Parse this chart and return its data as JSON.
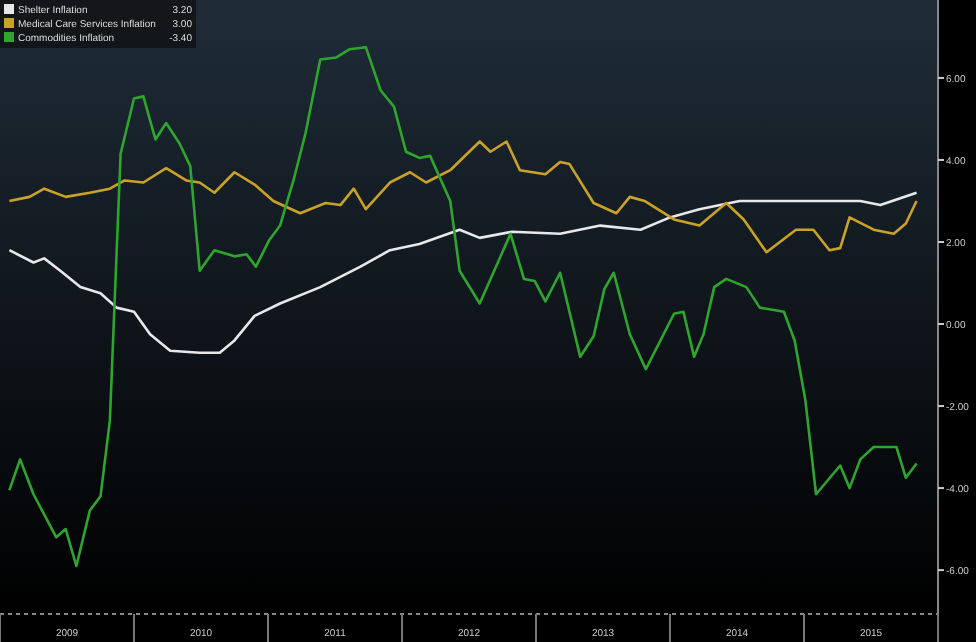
{
  "chart_data": {
    "type": "line",
    "legend": "top left",
    "grid": false,
    "marker": "none",
    "line_style": "solid",
    "xlim": [
      2009,
      2016
    ],
    "ylim": [
      -7.07,
      7.9
    ],
    "xticks": [
      {
        "value": 2009,
        "label": null
      },
      {
        "value": 2009.5,
        "label": "2009"
      },
      {
        "value": 2010,
        "label": null
      },
      {
        "value": 2010.5,
        "label": "2010"
      },
      {
        "value": 2011,
        "label": null
      },
      {
        "value": 2011.5,
        "label": "2011"
      },
      {
        "value": 2012,
        "label": null
      },
      {
        "value": 2012.5,
        "label": "2012"
      },
      {
        "value": 2013,
        "label": null
      },
      {
        "value": 2013.5,
        "label": "2013"
      },
      {
        "value": 2014,
        "label": null
      },
      {
        "value": 2014.5,
        "label": "2014"
      },
      {
        "value": 2015,
        "label": null
      },
      {
        "value": 2015.5,
        "label": "2015"
      },
      {
        "value": 2016,
        "label": null
      }
    ],
    "yticks": [
      {
        "value": 6,
        "label": "6.00"
      },
      {
        "value": 4,
        "label": "4.00"
      },
      {
        "value": 2,
        "label": "2.00"
      },
      {
        "value": 0,
        "label": "0.00"
      },
      {
        "value": -2,
        "label": "-2.00"
      },
      {
        "value": -4,
        "label": "-4.00"
      },
      {
        "value": -6,
        "label": "-6.00"
      }
    ],
    "series": [
      {
        "name": "Shelter Inflation",
        "color": "#e8e8e8",
        "x": [
          2009.07,
          2009.25,
          2009.33,
          2009.45,
          2009.6,
          2009.75,
          2009.87,
          2010.0,
          2010.12,
          2010.27,
          2010.49,
          2010.64,
          2010.75,
          2010.9,
          2011.09,
          2011.39,
          2011.69,
          2011.91,
          2012.13,
          2012.43,
          2012.58,
          2012.82,
          2013.18,
          2013.48,
          2013.78,
          2014.0,
          2014.22,
          2014.52,
          2014.97,
          2015.42,
          2015.57,
          2015.84
        ],
        "values": [
          1.8,
          1.5,
          1.6,
          1.3,
          0.9,
          0.75,
          0.4,
          0.3,
          -0.25,
          -0.65,
          -0.7,
          -0.7,
          -0.4,
          0.2,
          0.5,
          0.9,
          1.4,
          1.8,
          1.95,
          2.3,
          2.1,
          2.25,
          2.2,
          2.4,
          2.3,
          2.6,
          2.8,
          3.0,
          3.0,
          3.0,
          2.9,
          3.2
        ]
      },
      {
        "name": "Medical Care Services Inflation",
        "color": "#c9a227",
        "x": [
          2009.07,
          2009.22,
          2009.33,
          2009.49,
          2009.67,
          2009.82,
          2009.93,
          2010.07,
          2010.24,
          2010.39,
          2010.49,
          2010.6,
          2010.75,
          2010.9,
          2011.04,
          2011.24,
          2011.43,
          2011.54,
          2011.64,
          2011.73,
          2011.91,
          2012.06,
          2012.18,
          2012.36,
          2012.58,
          2012.66,
          2012.78,
          2012.88,
          2013.07,
          2013.18,
          2013.25,
          2013.43,
          2013.6,
          2013.7,
          2013.81,
          2014.03,
          2014.22,
          2014.42,
          2014.55,
          2014.72,
          2014.94,
          2015.07,
          2015.19,
          2015.27,
          2015.34,
          2015.52,
          2015.67,
          2015.76,
          2015.84
        ],
        "values": [
          3.0,
          3.1,
          3.3,
          3.1,
          3.2,
          3.3,
          3.5,
          3.45,
          3.8,
          3.5,
          3.45,
          3.2,
          3.7,
          3.4,
          3.0,
          2.7,
          2.95,
          2.9,
          3.3,
          2.8,
          3.45,
          3.7,
          3.45,
          3.75,
          4.45,
          4.2,
          4.45,
          3.75,
          3.65,
          3.95,
          3.9,
          2.95,
          2.7,
          3.1,
          3.0,
          2.55,
          2.4,
          2.95,
          2.55,
          1.75,
          2.3,
          2.3,
          1.8,
          1.85,
          2.6,
          2.3,
          2.2,
          2.45,
          3.0
        ]
      },
      {
        "name": "Commodities Inflation",
        "color": "#2fa52f",
        "x": [
          2009.07,
          2009.15,
          2009.25,
          2009.42,
          2009.49,
          2009.57,
          2009.67,
          2009.75,
          2009.82,
          2009.9,
          2010.0,
          2010.07,
          2010.16,
          2010.24,
          2010.34,
          2010.42,
          2010.49,
          2010.6,
          2010.75,
          2010.84,
          2010.91,
          2011.01,
          2011.09,
          2011.19,
          2011.28,
          2011.39,
          2011.51,
          2011.61,
          2011.73,
          2011.84,
          2011.94,
          2012.03,
          2012.13,
          2012.21,
          2012.36,
          2012.43,
          2012.58,
          2012.81,
          2012.91,
          2012.99,
          2013.07,
          2013.18,
          2013.33,
          2013.43,
          2013.51,
          2013.58,
          2013.7,
          2013.82,
          2014.03,
          2014.1,
          2014.18,
          2014.25,
          2014.33,
          2014.42,
          2014.57,
          2014.67,
          2014.85,
          2014.93,
          2015.01,
          2015.09,
          2015.27,
          2015.34,
          2015.42,
          2015.52,
          2015.69,
          2015.76,
          2015.84
        ],
        "values": [
          -4.05,
          -3.3,
          -4.15,
          -5.2,
          -5.0,
          -5.9,
          -4.55,
          -4.2,
          -2.35,
          4.15,
          5.5,
          5.55,
          4.5,
          4.9,
          4.4,
          3.85,
          1.3,
          1.8,
          1.65,
          1.7,
          1.4,
          2.05,
          2.4,
          3.5,
          4.65,
          6.45,
          6.5,
          6.7,
          6.75,
          5.7,
          5.3,
          4.2,
          4.05,
          4.1,
          3.0,
          1.3,
          0.5,
          2.2,
          1.1,
          1.05,
          0.55,
          1.25,
          -0.8,
          -0.3,
          0.85,
          1.25,
          -0.25,
          -1.1,
          0.25,
          0.3,
          -0.8,
          -0.25,
          0.9,
          1.1,
          0.9,
          0.4,
          0.3,
          -0.4,
          -1.85,
          -4.15,
          -3.45,
          -4.0,
          -3.3,
          -3.0,
          -3.0,
          -3.75,
          -3.4
        ]
      }
    ],
    "annotations": [
      "3.20",
      "3.00",
      "-3.40"
    ]
  }
}
